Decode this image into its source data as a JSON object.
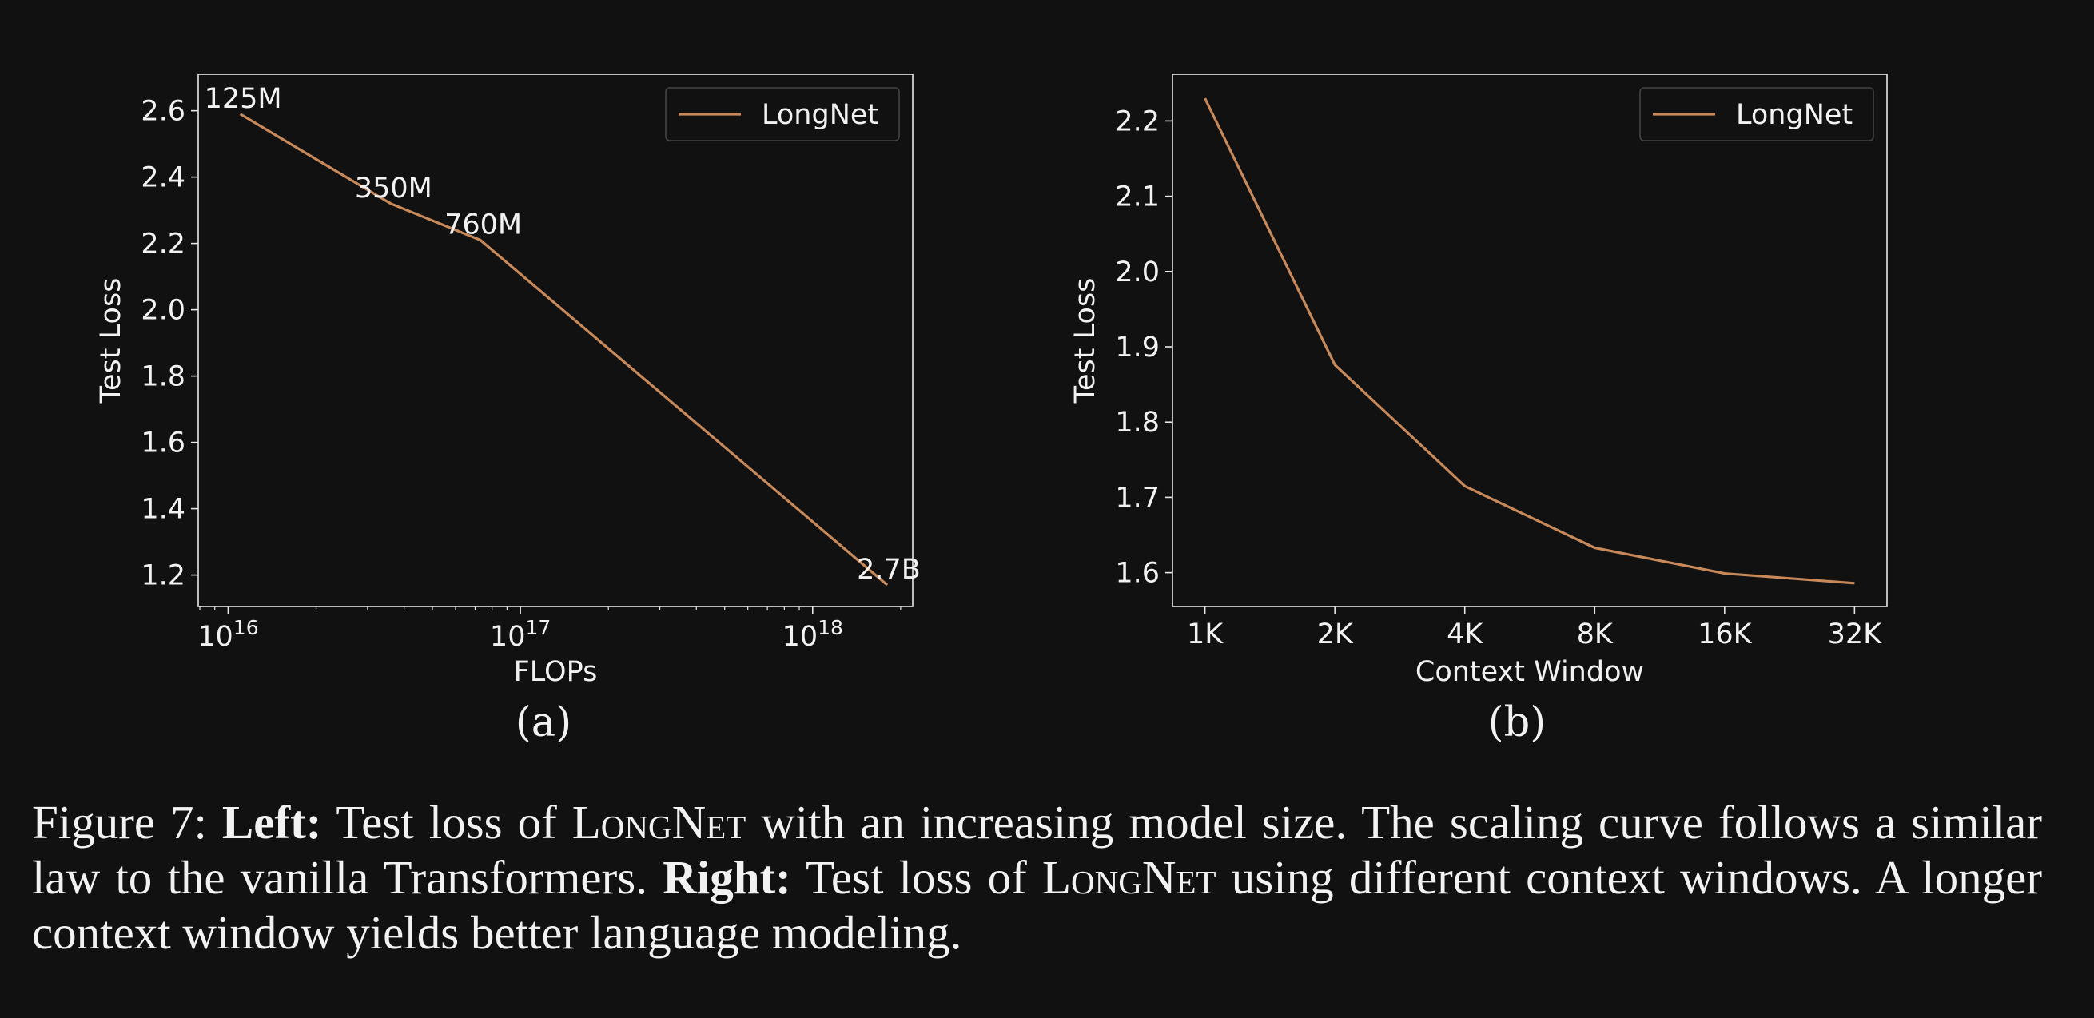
{
  "chart_data": [
    {
      "type": "line",
      "sublabel": "(a)",
      "xlabel": "FLOPs",
      "ylabel": "Test Loss",
      "xscale": "log",
      "xlim": [
        7900000000000000.0,
        2.2e+18
      ],
      "ylim": [
        1.105,
        2.71
      ],
      "xticks": [
        {
          "value": 1e+16,
          "base": "10",
          "exp": "16"
        },
        {
          "value": 1e+17,
          "base": "10",
          "exp": "17"
        },
        {
          "value": 1e+18,
          "base": "10",
          "exp": "18"
        }
      ],
      "yticks": [
        1.2,
        1.4,
        1.6,
        1.8,
        2.0,
        2.2,
        2.4,
        2.6
      ],
      "ytick_labels": [
        "1.2",
        "1.4",
        "1.6",
        "1.8",
        "2.0",
        "2.2",
        "2.4",
        "2.6"
      ],
      "grid": false,
      "legend": {
        "position": "top-right",
        "entries": [
          "LongNet"
        ]
      },
      "series": [
        {
          "name": "LongNet",
          "color": "#c8895a",
          "x": [
            1.1e+16,
            3.6e+16,
            7.3e+16,
            1.8e+18
          ],
          "y": [
            2.59,
            2.32,
            2.21,
            1.17
          ],
          "point_labels": [
            "125M",
            "350M",
            "760M",
            "2.7B"
          ]
        }
      ]
    },
    {
      "type": "line",
      "sublabel": "(b)",
      "xlabel": "Context Window",
      "ylabel": "Test Loss",
      "categories": [
        "1K",
        "2K",
        "4K",
        "8K",
        "16K",
        "32K"
      ],
      "ylim": [
        1.555,
        2.262
      ],
      "yticks": [
        1.6,
        1.7,
        1.8,
        1.9,
        2.0,
        2.1,
        2.2
      ],
      "ytick_labels": [
        "1.6",
        "1.7",
        "1.8",
        "1.9",
        "2.0",
        "2.1",
        "2.2"
      ],
      "grid": false,
      "legend": {
        "position": "top-right",
        "entries": [
          "LongNet"
        ]
      },
      "series": [
        {
          "name": "LongNet",
          "color": "#c8895a",
          "values": [
            2.23,
            1.876,
            1.715,
            1.633,
            1.599,
            1.586
          ]
        }
      ]
    }
  ],
  "caption": {
    "prefix": "Figure 7: ",
    "left_label": "Left:",
    "left_text_1": " Test loss of ",
    "model_name": "LongNet",
    "left_text_2": " with an increasing model size. The scaling curve follows a similar law to the vanilla Transformers. ",
    "right_label": "Right:",
    "right_text_1": " Test loss of ",
    "right_text_2": " using different context windows. A longer context window yields better language modeling."
  }
}
